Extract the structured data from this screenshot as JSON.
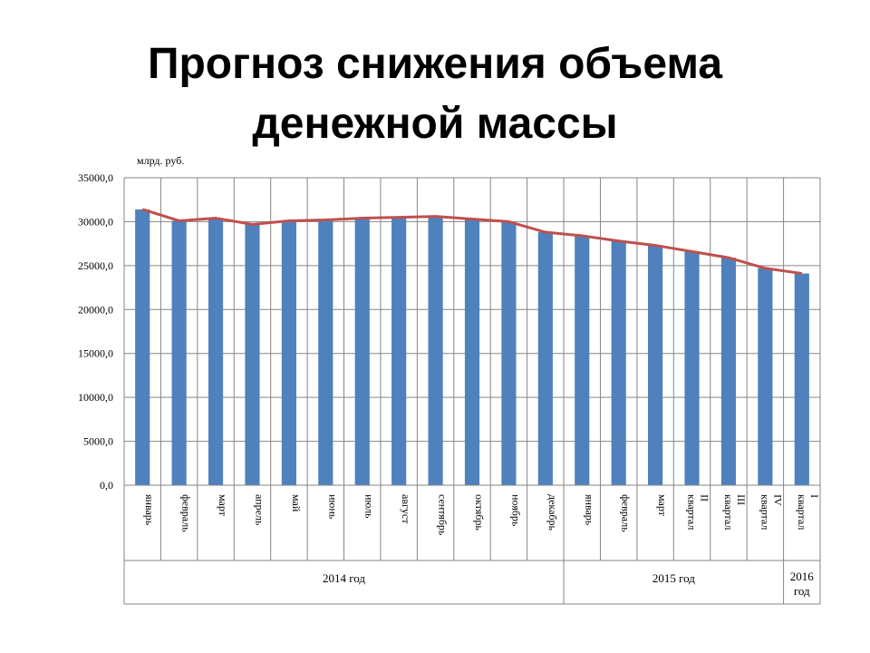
{
  "slide_title": [
    "Прогноз снижения объема",
    "денежной массы"
  ],
  "chart_data": {
    "type": "bar",
    "unit_label": "млрд. руб.",
    "categories": [
      "январь",
      "февраль",
      "март",
      "апрель",
      "май",
      "июнь",
      "июль",
      "август",
      "сентябрь",
      "октябрь",
      "ноябрь",
      "декабрь",
      "январь",
      "февраль",
      "март",
      "II квартал",
      "III квартал",
      "IV квартал",
      "I квартал"
    ],
    "groups": [
      {
        "label": "2014 год",
        "start": 0,
        "end": 11
      },
      {
        "label": "2015 год",
        "start": 12,
        "end": 17
      },
      {
        "label": "2016 год",
        "start": 18,
        "end": 18
      }
    ],
    "series": [
      {
        "type": "bar",
        "values": [
          31400,
          30100,
          30400,
          29700,
          30100,
          30200,
          30400,
          30500,
          30600,
          30300,
          30000,
          28800,
          28400,
          27800,
          27300,
          26600,
          25900,
          24700,
          24100
        ]
      },
      {
        "type": "line",
        "values": [
          31400,
          30100,
          30400,
          29700,
          30100,
          30200,
          30400,
          30500,
          30600,
          30300,
          30000,
          28800,
          28400,
          27800,
          27300,
          26600,
          25900,
          24700,
          24100
        ]
      }
    ],
    "yticks": [
      "0,0",
      "5000,0",
      "10000,0",
      "15000,0",
      "20000,0",
      "25000,0",
      "30000,0",
      "35000,0"
    ],
    "ylim": [
      0,
      35000
    ],
    "grid": true,
    "colors": {
      "bar": "#4F81BD",
      "line": "#C0504D",
      "grid": "#868686"
    }
  }
}
